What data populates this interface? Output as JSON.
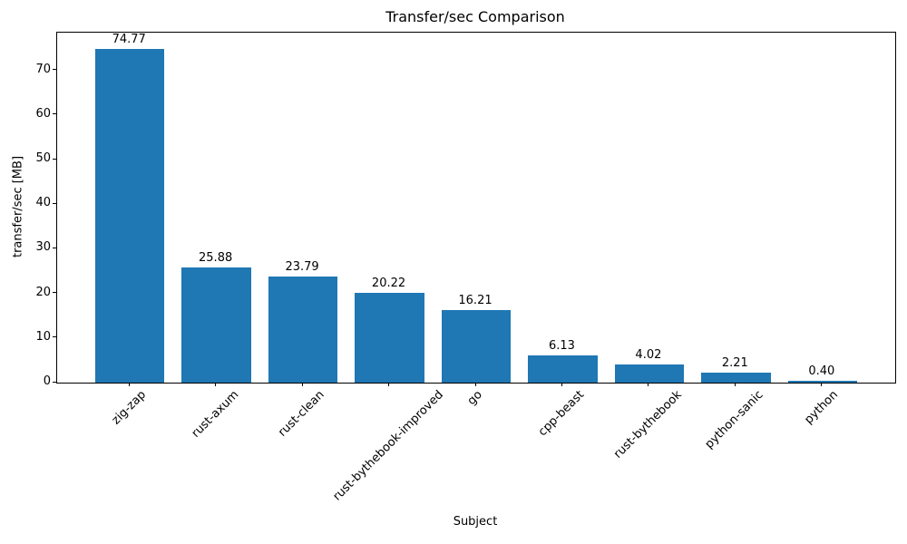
{
  "chart_data": {
    "type": "bar",
    "title": "Transfer/sec Comparison",
    "xlabel": "Subject",
    "ylabel": "transfer/sec [MB]",
    "categories": [
      "zig-zap",
      "rust-axum",
      "rust-clean",
      "rust-bythebook-improved",
      "go",
      "cpp-beast",
      "rust-bythebook",
      "python-sanic",
      "python"
    ],
    "values": [
      74.77,
      25.88,
      23.79,
      20.22,
      16.21,
      6.13,
      4.02,
      2.21,
      0.4
    ],
    "value_labels": [
      "74.77",
      "25.88",
      "23.79",
      "20.22",
      "16.21",
      "6.13",
      "4.02",
      "2.21",
      "0.40"
    ],
    "yticks": [
      0,
      10,
      20,
      30,
      40,
      50,
      60,
      70
    ],
    "ylim": [
      0,
      78.5
    ],
    "bar_color": "#1f77b4",
    "background_color": "#ffffff",
    "text_color": "#000000",
    "grid": false,
    "legend": "none",
    "bar_width_fraction": 0.8,
    "x_tick_rotation_deg": 45
  }
}
